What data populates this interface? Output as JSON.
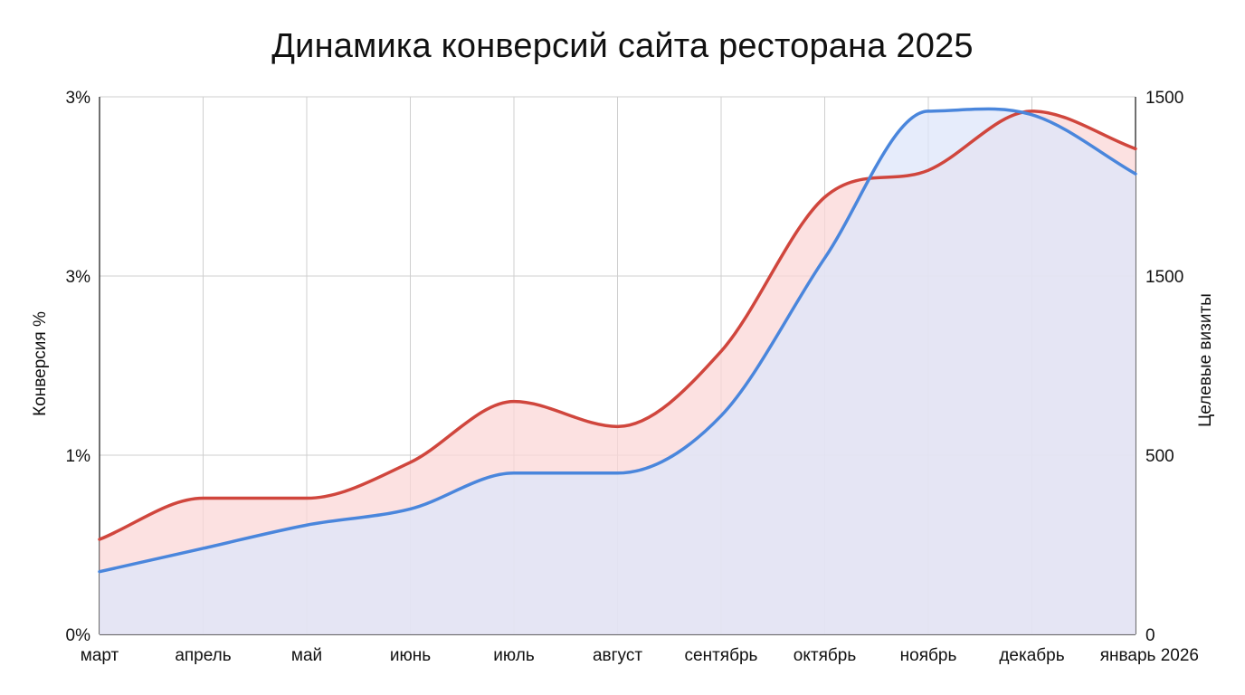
{
  "chart_data": {
    "type": "area",
    "title": "Динамика конверсий сайта ресторана 2025",
    "categories": [
      "март",
      "апрель",
      "май",
      "июнь",
      "июль",
      "август",
      "сентябрь",
      "октябрь",
      "ноябрь",
      "декабрь",
      "январь 2026"
    ],
    "y_left": {
      "label": "Конверсия %",
      "tick_labels": [
        "0%",
        "1%",
        "3%",
        "3%"
      ],
      "ylim": [
        0,
        3
      ]
    },
    "y_right": {
      "label": "Целевые визиты",
      "tick_labels": [
        "0",
        "500",
        "1500",
        "1500"
      ],
      "ylim": [
        0,
        1500
      ]
    },
    "series": [
      {
        "axis": "left",
        "color": "#d0463d",
        "fill": "#fbd7d7",
        "values": [
          0.53,
          0.76,
          0.76,
          0.96,
          1.3,
          1.16,
          1.58,
          2.44,
          2.59,
          2.92,
          2.71
        ]
      },
      {
        "axis": "right",
        "color": "#4a86dc",
        "fill": "#dde6fa",
        "values": [
          175,
          240,
          305,
          350,
          450,
          450,
          610,
          1050,
          1460,
          1450,
          1285
        ]
      }
    ],
    "grid": true,
    "legend": "none"
  }
}
